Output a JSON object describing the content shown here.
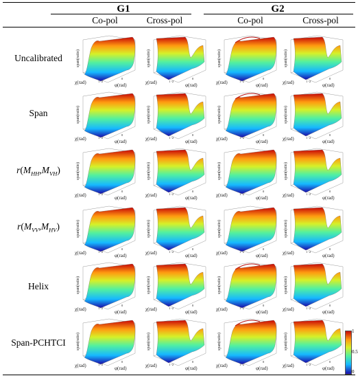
{
  "groups": [
    {
      "label": "G1",
      "columns": [
        "Co-pol",
        "Cross-pol"
      ]
    },
    {
      "label": "G2",
      "columns": [
        "Co-pol",
        "Cross-pol"
      ]
    }
  ],
  "rows": [
    {
      "label": "Uncalibrated"
    },
    {
      "label": "Span"
    },
    {
      "label_parts": {
        "r": "r",
        "open": "(",
        "m1": "M",
        "s1": "HH",
        "comma": ",",
        "m2": "M",
        "s2": "VH",
        "close": ")"
      }
    },
    {
      "label_parts": {
        "r": "r",
        "open": "(",
        "m1": "M",
        "s1": "VV",
        "comma": ",",
        "m2": "M",
        "s2": "HV",
        "close": ")"
      }
    },
    {
      "label": "Helix"
    },
    {
      "label": "Span-PCHTCI"
    }
  ],
  "axes": {
    "z": "span(ratio)",
    "x": "χ(rad)",
    "y": "φ(rad)",
    "ticks": {
      "x": "1",
      "y1": "-2",
      "y2": "0"
    }
  },
  "colorbar": {
    "max": "1",
    "mid": "0.5",
    "min": "0"
  }
}
